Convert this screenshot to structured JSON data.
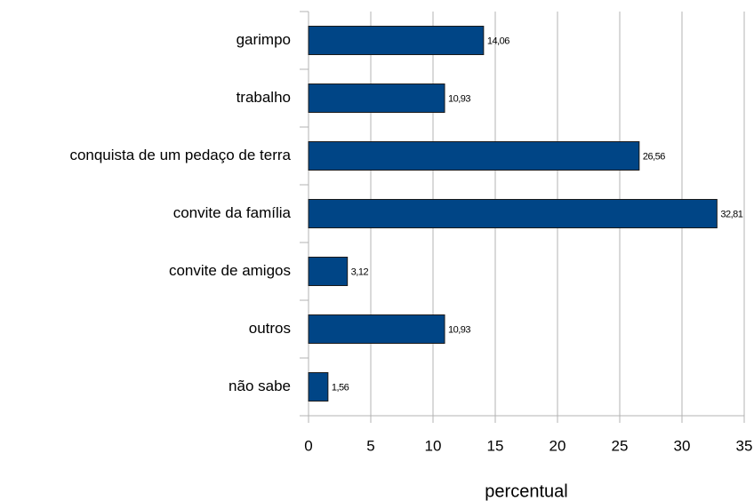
{
  "chart_data": {
    "type": "bar",
    "orientation": "horizontal",
    "categories": [
      "garimpo",
      "trabalho",
      "conquista de um pedaço de terra",
      "convite da família",
      "convite de amigos",
      "outros",
      "não sabe"
    ],
    "values": [
      14.06,
      10.93,
      26.56,
      32.81,
      3.12,
      10.93,
      1.56
    ],
    "value_labels": [
      "14,06",
      "10,93",
      "26,56",
      "32,81",
      "3,12",
      "10,93",
      "1,56"
    ],
    "color": "#004586",
    "xlabel": "percentual",
    "xlim": [
      0,
      35
    ],
    "xticks": [
      0,
      5,
      10,
      15,
      20,
      25,
      30,
      35
    ],
    "grid": true
  }
}
